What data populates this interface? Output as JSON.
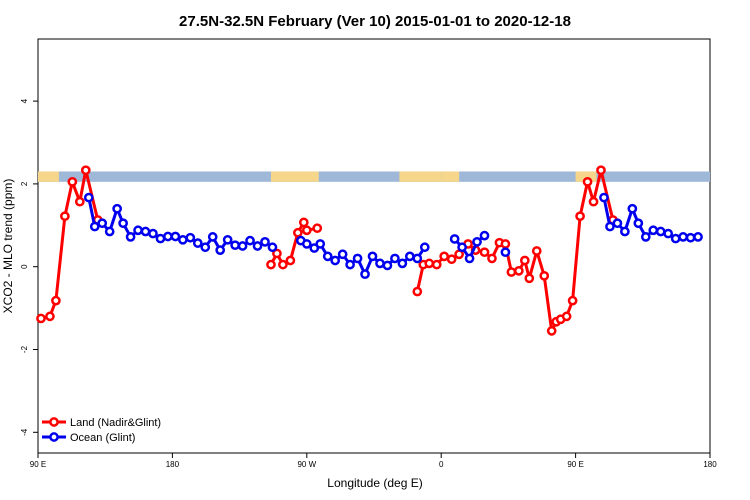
{
  "chart_data": {
    "type": "line",
    "title": "27.5N-32.5N February (Ver 10)   2015-01-01 to 2020-12-18",
    "xlabel": "Longitude (deg E)",
    "ylabel": "XCO2 - MLO trend (ppm)",
    "x_ticks": [
      {
        "value": 90,
        "label": "90 E"
      },
      {
        "value": 180,
        "label": "180"
      },
      {
        "value": 270,
        "label": "90 W"
      },
      {
        "value": 360,
        "label": "0"
      },
      {
        "value": 450,
        "label": "90 E"
      },
      {
        "value": 540,
        "label": "180"
      }
    ],
    "xlim": [
      90,
      540
    ],
    "ylim": [
      -4.5,
      5.5
    ],
    "y_ticks": [
      -4,
      -2,
      0,
      2,
      4
    ],
    "grid": false,
    "legend_position": "bottom-left",
    "land_ocean_strip": {
      "y_range": [
        2.05,
        2.3
      ],
      "ocean_color": "#9fb8d8",
      "land_color": "#f5d68a",
      "land_segments": [
        [
          90,
          104
        ],
        [
          246,
          278
        ],
        [
          332,
          360
        ],
        [
          360,
          372
        ],
        [
          450,
          464
        ]
      ]
    },
    "series": [
      {
        "name": "Land (Nadir&Glint)",
        "color": "#ff0000",
        "segments": [
          [
            [
              92,
              -1.25
            ],
            [
              98,
              -1.2
            ],
            [
              102,
              -0.82
            ],
            [
              108,
              1.22
            ],
            [
              113,
              2.05
            ],
            [
              118,
              1.57
            ],
            [
              122,
              2.33
            ],
            [
              130,
              1.13
            ]
          ],
          [
            [
              246,
              0.05
            ],
            [
              250,
              0.32
            ],
            [
              254,
              0.05
            ],
            [
              259,
              0.15
            ],
            [
              264,
              0.82
            ],
            [
              268,
              1.07
            ],
            [
              270,
              0.88
            ],
            [
              277,
              0.93
            ]
          ],
          [
            [
              344,
              -0.6
            ],
            [
              348,
              0.05
            ],
            [
              352,
              0.08
            ],
            [
              357,
              0.05
            ],
            [
              362,
              0.25
            ],
            [
              367,
              0.18
            ],
            [
              372,
              0.3
            ],
            [
              378,
              0.55
            ],
            [
              383,
              0.4
            ],
            [
              389,
              0.35
            ],
            [
              394,
              0.2
            ],
            [
              399,
              0.58
            ],
            [
              403,
              0.55
            ],
            [
              407,
              -0.13
            ],
            [
              412,
              -0.1
            ],
            [
              416,
              0.15
            ],
            [
              419,
              -0.28
            ],
            [
              424,
              0.38
            ],
            [
              429,
              -0.22
            ],
            [
              434,
              -1.55
            ],
            [
              437,
              -1.33
            ],
            [
              440,
              -1.27
            ],
            [
              444,
              -1.2
            ],
            [
              448,
              -0.82
            ],
            [
              453,
              1.22
            ],
            [
              458,
              2.05
            ],
            [
              462,
              1.57
            ],
            [
              467,
              2.33
            ],
            [
              475,
              1.13
            ]
          ]
        ]
      },
      {
        "name": "Ocean (Glint)",
        "color": "#0000ee",
        "segments": [
          [
            [
              124,
              1.67
            ],
            [
              128,
              0.97
            ],
            [
              133,
              1.05
            ],
            [
              138,
              0.85
            ],
            [
              143,
              1.4
            ],
            [
              147,
              1.05
            ],
            [
              152,
              0.72
            ],
            [
              157,
              0.88
            ],
            [
              162,
              0.85
            ],
            [
              167,
              0.8
            ],
            [
              172,
              0.68
            ],
            [
              177,
              0.73
            ],
            [
              182,
              0.73
            ],
            [
              187,
              0.65
            ],
            [
              192,
              0.7
            ],
            [
              197,
              0.57
            ],
            [
              202,
              0.47
            ],
            [
              207,
              0.72
            ],
            [
              212,
              0.4
            ],
            [
              217,
              0.65
            ],
            [
              222,
              0.52
            ],
            [
              227,
              0.5
            ],
            [
              232,
              0.63
            ],
            [
              237,
              0.5
            ],
            [
              242,
              0.6
            ],
            [
              247,
              0.47
            ]
          ],
          [
            [
              266,
              0.63
            ],
            [
              270,
              0.55
            ],
            [
              275,
              0.45
            ],
            [
              279,
              0.55
            ],
            [
              284,
              0.25
            ],
            [
              289,
              0.15
            ],
            [
              294,
              0.3
            ],
            [
              299,
              0.05
            ],
            [
              304,
              0.2
            ],
            [
              309,
              -0.18
            ],
            [
              314,
              0.25
            ],
            [
              319,
              0.08
            ],
            [
              324,
              0.03
            ],
            [
              329,
              0.2
            ],
            [
              334,
              0.08
            ],
            [
              339,
              0.25
            ],
            [
              344,
              0.2
            ],
            [
              349,
              0.47
            ]
          ],
          [
            [
              369,
              0.67
            ],
            [
              374,
              0.47
            ],
            [
              379,
              0.2
            ],
            [
              384,
              0.6
            ],
            [
              389,
              0.75
            ]
          ],
          [
            [
              403,
              0.35
            ]
          ],
          [
            [
              469,
              1.67
            ],
            [
              473,
              0.97
            ],
            [
              478,
              1.05
            ],
            [
              483,
              0.85
            ],
            [
              488,
              1.4
            ],
            [
              492,
              1.05
            ],
            [
              497,
              0.72
            ],
            [
              502,
              0.88
            ],
            [
              507,
              0.85
            ],
            [
              512,
              0.8
            ],
            [
              517,
              0.68
            ],
            [
              522,
              0.72
            ],
            [
              527,
              0.7
            ],
            [
              532,
              0.72
            ]
          ]
        ]
      }
    ]
  }
}
